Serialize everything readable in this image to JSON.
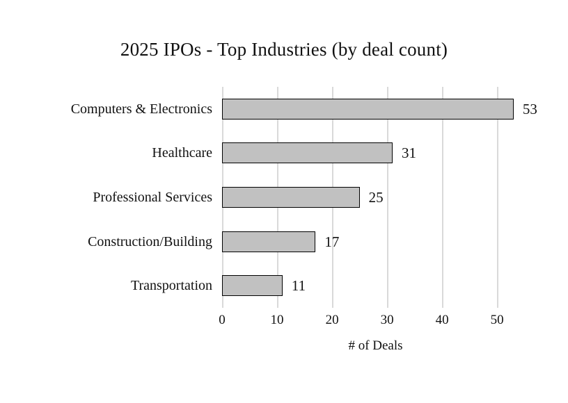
{
  "title": "2025 IPOs - Top Industries (by deal count)",
  "chart_data": {
    "type": "bar",
    "orientation": "horizontal",
    "title": "2025 IPOs - Top Industries (by deal count)",
    "categories": [
      "Computers & Electronics",
      "Healthcare",
      "Professional Services",
      "Construction/Building",
      "Transportation"
    ],
    "values": [
      53,
      31,
      25,
      17,
      11
    ],
    "xlabel": "# of Deals",
    "ylabel": "",
    "xticks": [
      0,
      10,
      20,
      30,
      40,
      50
    ],
    "xlim": [
      0,
      55.8
    ],
    "grid": true,
    "legend": false,
    "colors": {
      "bar_fill": "#c1c1c1",
      "bar_border": "#000000",
      "gridline": "#d9d9d9",
      "background": "#ffffff",
      "text": "#111111"
    }
  }
}
